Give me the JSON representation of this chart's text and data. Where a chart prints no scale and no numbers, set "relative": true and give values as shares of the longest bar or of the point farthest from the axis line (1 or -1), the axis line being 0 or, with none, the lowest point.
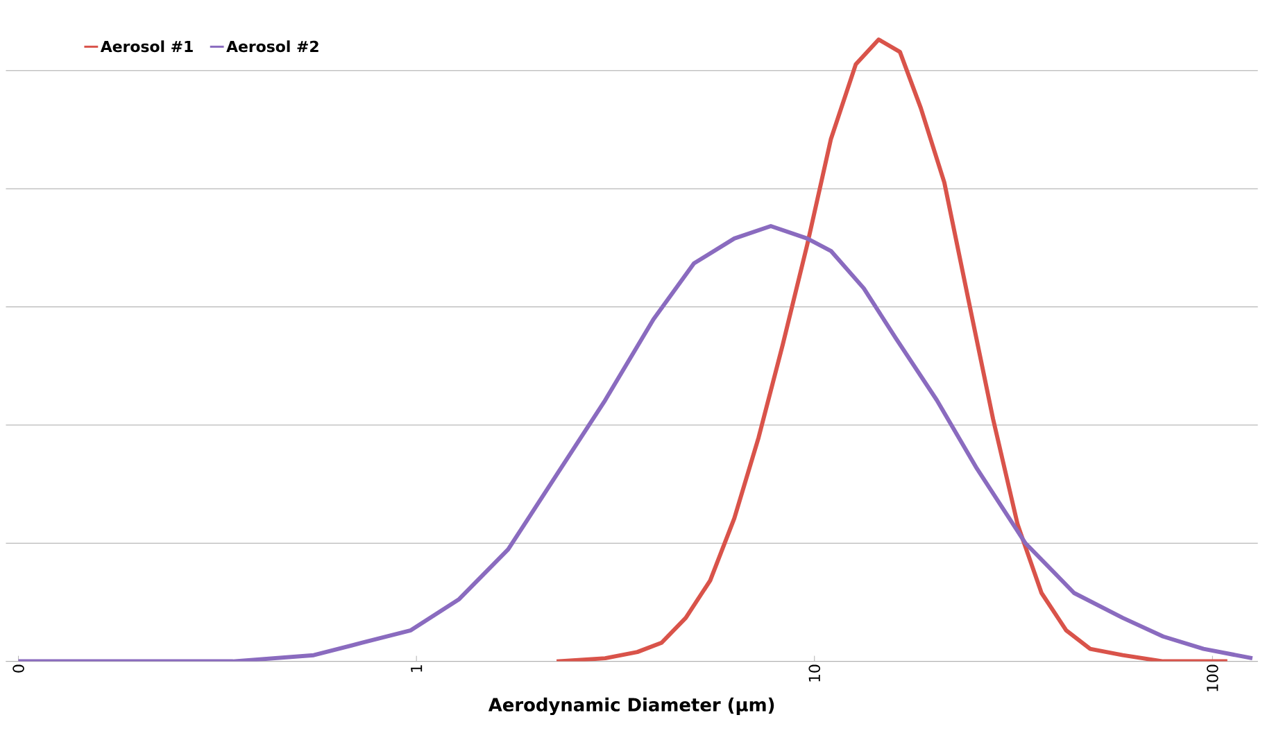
{
  "chart_data": {
    "type": "line",
    "xlabel": "Aerodynamic Diameter (µm)",
    "log": "x",
    "relative": true,
    "grid": "y",
    "legend": "top left",
    "marker": "none",
    "line_style": "solid",
    "xlim": [
      0.093,
      130
    ],
    "xticks": [
      {
        "value": 0.1,
        "label": "0"
      },
      1,
      10,
      100
    ],
    "series": [
      {
        "name": "Aerosol #1",
        "color": "#d9534a",
        "x": [
          2.25,
          2.98,
          3.59,
          4.13,
          4.75,
          5.47,
          6.29,
          7.24,
          8.33,
          9.59,
          11.0,
          12.7,
          14.5,
          16.4,
          18.5,
          21.2,
          24.4,
          28.1,
          32.4,
          37.2,
          42.9,
          49.3,
          59.5,
          75.2,
          109
        ],
        "values": [
          0.0,
          0.005,
          0.015,
          0.03,
          0.07,
          0.13,
          0.23,
          0.36,
          0.51,
          0.67,
          0.84,
          0.96,
          1,
          0.98,
          0.89,
          0.77,
          0.58,
          0.39,
          0.22,
          0.11,
          0.05,
          0.02,
          0.01,
          0,
          0
        ]
      },
      {
        "name": "Aerosol #2",
        "color": "#8a6bbf",
        "x": [
          0.1,
          0.346,
          0.552,
          0.731,
          0.968,
          1.28,
          1.7,
          2.25,
          2.98,
          3.94,
          4.98,
          6.29,
          7.77,
          9.59,
          11.0,
          13.3,
          16.0,
          20.3,
          25.6,
          33.9,
          44.9,
          59.5,
          75.2,
          95.0,
          126
        ],
        "values": [
          0,
          0,
          0.01,
          0.03,
          0.05,
          0.1,
          0.18,
          0.3,
          0.42,
          0.55,
          0.64,
          0.68,
          0.7,
          0.68,
          0.66,
          0.6,
          0.52,
          0.42,
          0.31,
          0.19,
          0.11,
          0.07,
          0.04,
          0.02,
          0.005
        ]
      }
    ]
  }
}
